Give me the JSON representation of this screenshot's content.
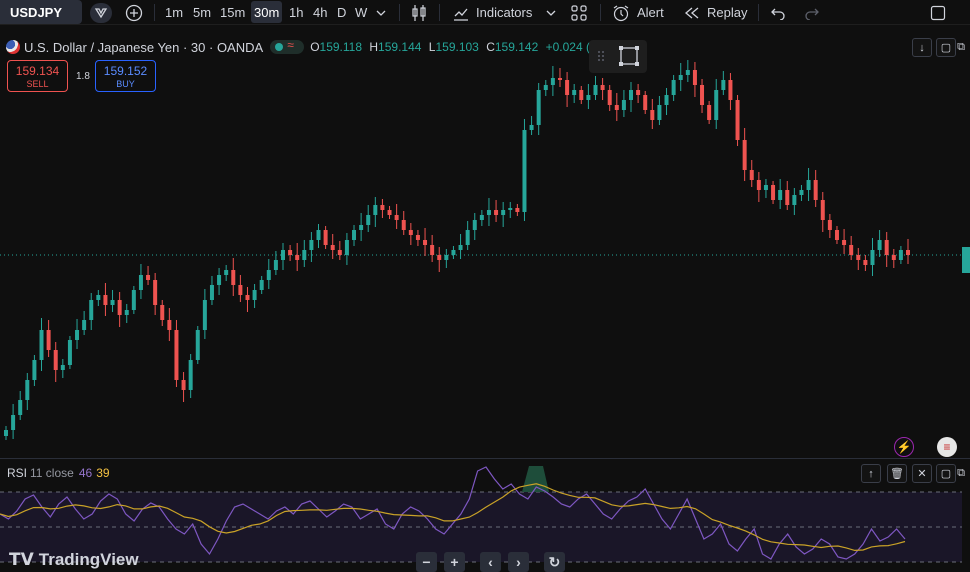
{
  "toolbar": {
    "symbol": "USDJPY",
    "timeframes": [
      "1m",
      "5m",
      "15m",
      "30m",
      "1h",
      "4h",
      "D",
      "W"
    ],
    "active_timeframe": "30m",
    "indicators_label": "Indicators",
    "alert_label": "Alert",
    "replay_label": "Replay"
  },
  "legend": {
    "title": "U.S. Dollar / Japanese Yen · 30 · OANDA",
    "open_key": "O",
    "open": "159.118",
    "high_key": "H",
    "high": "159.144",
    "low_key": "L",
    "low": "159.103",
    "close_key": "C",
    "close": "159.142",
    "change": "+0.024 (+"
  },
  "trade": {
    "sell_price": "159.134",
    "sell_label": "SELL",
    "spread": "1.8",
    "buy_price": "159.152",
    "buy_label": "BUY"
  },
  "rsi": {
    "name": "RSI",
    "params": "11 close",
    "value": "46",
    "ma_value": "39"
  },
  "footer": {
    "logo_text": "TradingView"
  },
  "colors": {
    "up": "#26a69a",
    "down": "#ef5350",
    "rsi_line": "#7e57c2",
    "rsi_ma": "#c9a227",
    "background": "#0f0f0f"
  },
  "icons": {
    "alert": "alarm-clock-icon",
    "replay": "rewind-icon",
    "indicators": "chart-line-icon",
    "layouts": "grid-icon",
    "undo": "undo-icon",
    "redo": "redo-icon"
  }
}
